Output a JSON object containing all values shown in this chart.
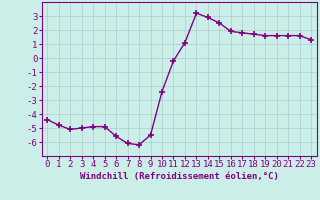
{
  "x": [
    0,
    1,
    2,
    3,
    4,
    5,
    6,
    7,
    8,
    9,
    10,
    11,
    12,
    13,
    14,
    15,
    16,
    17,
    18,
    19,
    20,
    21,
    22,
    23
  ],
  "y": [
    -4.4,
    -4.8,
    -5.1,
    -5.0,
    -4.9,
    -4.9,
    -5.6,
    -6.1,
    -6.2,
    -5.5,
    -2.4,
    -0.2,
    1.1,
    3.2,
    2.9,
    2.5,
    1.9,
    1.8,
    1.7,
    1.6,
    1.6,
    1.6,
    1.6,
    1.3
  ],
  "line_color": "#800080",
  "marker": "+",
  "marker_size": 4,
  "line_width": 1.0,
  "bg_color": "#cceee8",
  "grid_color": "#aacccc",
  "xlabel": "Windchill (Refroidissement éolien,°C)",
  "ylim": [
    -7,
    4
  ],
  "xlim": [
    -0.5,
    23.5
  ],
  "yticks": [
    3,
    2,
    1,
    0,
    -1,
    -2,
    -3,
    -4,
    -5,
    -6
  ],
  "xticks": [
    0,
    1,
    2,
    3,
    4,
    5,
    6,
    7,
    8,
    9,
    10,
    11,
    12,
    13,
    14,
    15,
    16,
    17,
    18,
    19,
    20,
    21,
    22,
    23
  ],
  "tick_color": "#800080",
  "axis_color": "#800080",
  "font_size": 6.5,
  "xlabel_fontsize": 6.5
}
